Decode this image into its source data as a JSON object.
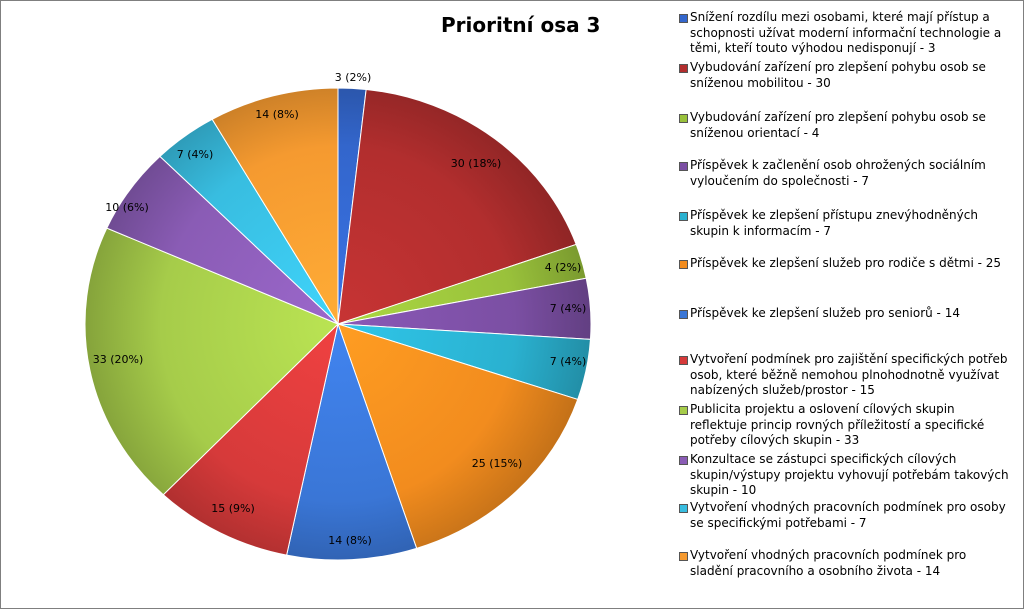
{
  "chart_data": {
    "type": "pie",
    "title": "Prioritní osa 3",
    "slices": [
      {
        "label": "Snížení rozdílu mezi osobami, které mají přístup a schopnosti užívat moderní informační technologie a těmi, kteří touto výhodou nedisponují - 3",
        "value": 3,
        "data_label": "3 (2%)",
        "color": "#3366cc"
      },
      {
        "label": "Vybudování zařízení pro zlepšení pohybu osob se sníženou mobilitou - 30",
        "value": 30,
        "data_label": "30 (18%)",
        "color": "#b22e2e"
      },
      {
        "label": "Vybudování zařízení pro zlepšení pohybu osob se sníženou orientací - 4",
        "value": 4,
        "data_label": "4 (2%)",
        "color": "#99c13b"
      },
      {
        "label": "Příspěvek k začlenění osob ohrožených sociálním vyloučením do společnosti - 7",
        "value": 7,
        "data_label": "7 (4%)",
        "color": "#7b4fa3"
      },
      {
        "label": "Příspěvek ke zlepšení přístupu znevýhodněných skupin k informacím - 7",
        "value": 7,
        "data_label": "7 (4%)",
        "color": "#2ab1d0"
      },
      {
        "label": "Příspěvek ke zlepšení služeb pro rodiče s dětmi - 25",
        "value": 25,
        "data_label": "25 (15%)",
        "color": "#f28c1e"
      },
      {
        "label": "Příspěvek ke zlepšení služeb pro seniorů - 14",
        "value": 14,
        "data_label": "14 (8%)",
        "color": "#3a76d6"
      },
      {
        "label": "Vytvoření podmínek pro zajištění specifických potřeb osob, které běžně nemohou plnohodnotně využívat nabízených služeb/prostor - 15",
        "value": 15,
        "data_label": "15 (9%)",
        "color": "#d63a3a"
      },
      {
        "label": "Publicita projektu a oslovení cílových skupin reflektuje princip rovných příležitostí a specifické potřeby cílových skupin - 33",
        "value": 33,
        "data_label": "33 (20%)",
        "color": "#a6cc4a"
      },
      {
        "label": "Konzultace se zástupci specifických cílových skupin/výstupy projektu vyhovují potřebám takových skupin - 10",
        "value": 10,
        "data_label": "10 (6%)",
        "color": "#8a5cb5"
      },
      {
        "label": "Vytvoření vhodných pracovních podmínek pro osoby se specifickými potřebami - 7",
        "value": 7,
        "data_label": "7 (4%)",
        "color": "#38bde0"
      },
      {
        "label": "Vytvoření vhodných pracovních podmínek pro sladění pracovního a osobního života - 14",
        "value": 14,
        "data_label": "14 (8%)",
        "color": "#f59a30"
      }
    ],
    "legend_position": "right"
  }
}
